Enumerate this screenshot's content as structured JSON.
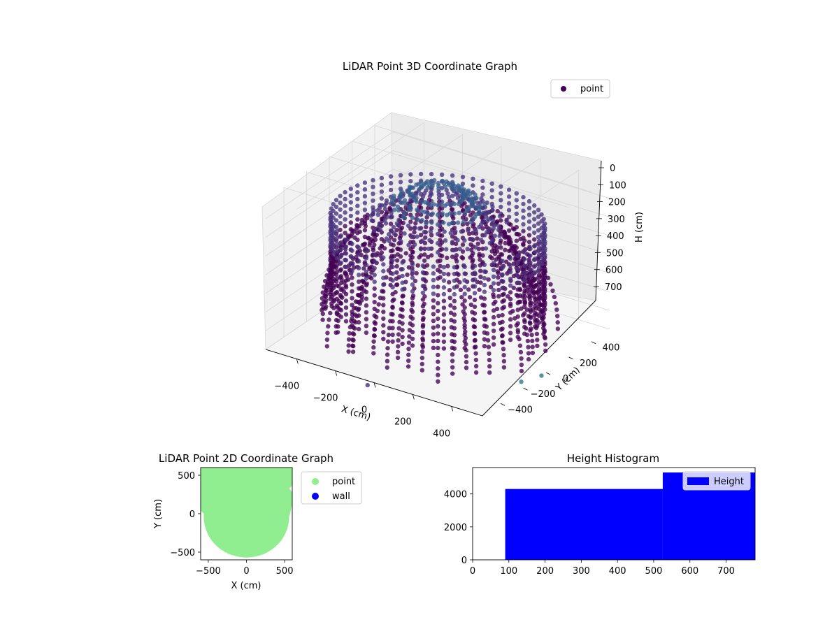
{
  "chart_data": [
    {
      "type": "scatter",
      "title": "LiDAR Point 3D Coordinate Graph",
      "xlabel": "X (cm)",
      "ylabel": "Y (cm)",
      "zlabel": "H (cm)",
      "xlim": [
        -560,
        560
      ],
      "ylim": [
        -560,
        560
      ],
      "zlim": [
        800,
        0
      ],
      "x_ticks": [
        "−400",
        "−200",
        "0",
        "200",
        "400"
      ],
      "y_ticks": [
        "−400",
        "−200",
        "0",
        "200",
        "400"
      ],
      "z_ticks": [
        "0",
        "100",
        "200",
        "300",
        "400",
        "500",
        "600",
        "700"
      ],
      "series": [
        {
          "name": "point"
        }
      ],
      "legend": "top-right",
      "grid": true,
      "colormap": [
        "#440154",
        "#46327e",
        "#365c8d",
        "#2a788e"
      ],
      "structure": {
        "wall_radius": 520,
        "wall_height_range": [
          200,
          780
        ],
        "strand_count": 46,
        "strand_height_range": [
          0,
          780
        ]
      }
    },
    {
      "type": "scatter",
      "title": "LiDAR Point 2D Coordinate Graph",
      "xlabel": "X (cm)",
      "ylabel": "Y (cm)",
      "xlim": [
        -600,
        600
      ],
      "ylim": [
        -600,
        600
      ],
      "x_ticks": [
        "−500",
        "0",
        "500"
      ],
      "y_ticks": [
        "−500",
        "0",
        "500"
      ],
      "series": [
        {
          "name": "point",
          "color": "#90ee90"
        },
        {
          "name": "wall",
          "color": "#0000ff"
        }
      ],
      "legend": "outside-right"
    },
    {
      "type": "bar",
      "title": "Height Histogram",
      "xlim": [
        0,
        780
      ],
      "ylim": [
        0,
        5600
      ],
      "x_ticks": [
        0,
        100,
        200,
        300,
        400,
        500,
        600,
        700
      ],
      "y_ticks": [
        0,
        2000,
        4000
      ],
      "bins": [
        {
          "x0": 90,
          "x1": 525,
          "value": 4300
        },
        {
          "x0": 525,
          "x1": 780,
          "value": 5300
        }
      ],
      "series": [
        {
          "name": "Height",
          "color": "#0000ff"
        }
      ],
      "legend": "top-right"
    }
  ]
}
